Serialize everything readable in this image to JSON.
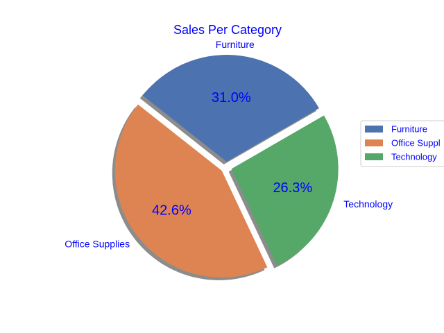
{
  "chart_data": {
    "type": "pie",
    "title": "Sales Per Category",
    "categories": [
      "Furniture",
      "Office Supplies",
      "Technology"
    ],
    "values": [
      31.0,
      42.6,
      26.3
    ],
    "percent_labels": [
      "31.0%",
      "42.6%",
      "26.3%"
    ],
    "legend_labels": [
      "Furniture",
      "Office Suppl",
      "Technology"
    ],
    "colors": [
      "#4c72b0",
      "#dd8452",
      "#55a868"
    ],
    "text_color": "#0000ff",
    "start_angle_deg": 30,
    "exploded": true,
    "shadow": true,
    "legend": "right"
  }
}
